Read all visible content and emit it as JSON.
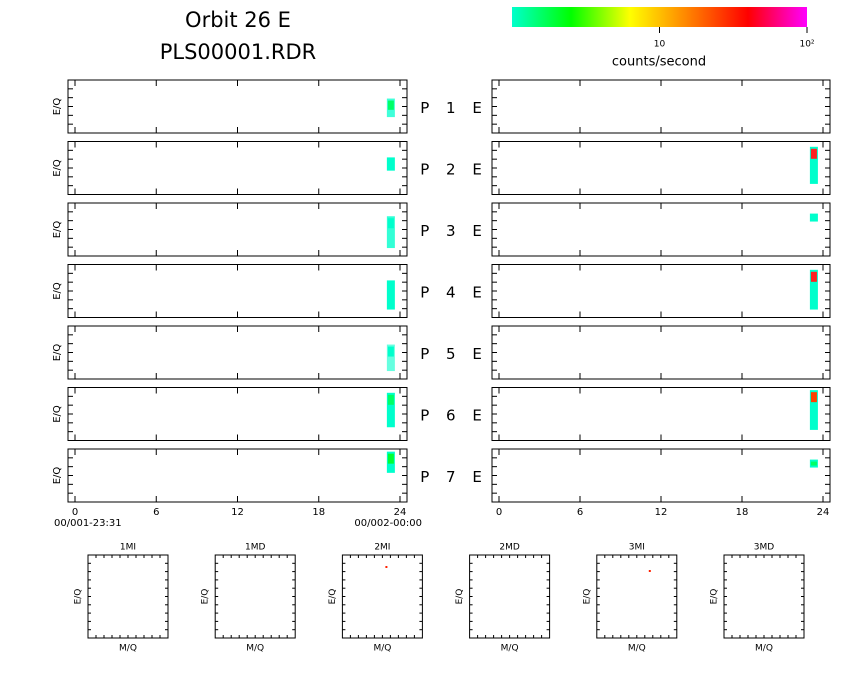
{
  "title": "Orbit 26 E",
  "subtitle": "PLS00001.RDR",
  "colorbar": {
    "colors": [
      "#00ffcc",
      "#00ff00",
      "#ffff00",
      "#ff8000",
      "#ff0000",
      "#ff00ff"
    ],
    "scale": "log",
    "lim": [
      1,
      100
    ],
    "ticks": [
      {
        "value": 10,
        "label": "10"
      },
      {
        "value": 100,
        "label": "10²"
      }
    ],
    "label": "counts/second"
  },
  "panels": {
    "ylabel": "E/Q",
    "labels": [
      "P 1 E",
      "P 2 E",
      "P 3 E",
      "P 4 E",
      "P 5 E",
      "P 6 E",
      "P 7 E"
    ],
    "xlim": [
      0,
      24
    ],
    "xticks": [
      0,
      6,
      12,
      18,
      24
    ],
    "start_time": "00/001-23:31",
    "end_time": "00/002-00:00"
  },
  "mass_panels": {
    "titles": [
      "1MI",
      "1MD",
      "2MI",
      "2MD",
      "3MI",
      "3MD"
    ],
    "ylabel": "E/Q",
    "xlabel": "M/Q"
  }
}
